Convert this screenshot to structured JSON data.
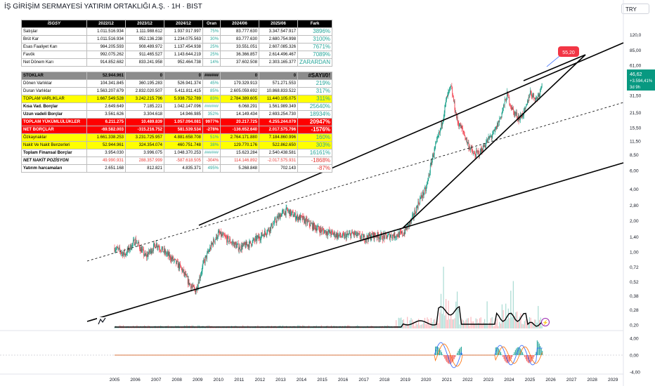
{
  "title": "İŞ GİRİŞİM SERMAYESİ YATIRIM ORTAKLIĞI A.Ş. · 1H · BIST",
  "currency": "TRY",
  "price_tag": {
    "value": "46,62",
    "change": "+3.594,41%",
    "countdown": "3d 9h"
  },
  "target_tag": "55,20",
  "table": {
    "header": [
      "İSGSY",
      "2022/12",
      "2023/12",
      "2024/12",
      "Oran",
      "2024/06",
      "2025/06",
      "Fark"
    ],
    "rows_top": [
      {
        "label": "Satışlar",
        "v": [
          "1.011.516.934",
          "1.111.988.612",
          "1.937.917.997",
          "75%",
          "83.777.630",
          "3.347.547.917",
          "3896%"
        ]
      },
      {
        "label": "Brüt Kar",
        "v": [
          "1.011.516.934",
          "952.136.238",
          "1.234.075.563",
          "30%",
          "83.777.630",
          "2.680.754.998",
          "3100%"
        ]
      },
      {
        "label": "Esas Faaliyet Karı",
        "v": [
          "984.205.593",
          "908.489.972",
          "1.137.454.938",
          "25%",
          "33.551.051",
          "2.607.085.326",
          "7671%"
        ]
      },
      {
        "label": "Favök",
        "v": [
          "992.075.262",
          "911.465.527",
          "1.143.644.219",
          "25%",
          "36.366.857",
          "2.614.496.467",
          "7089%"
        ]
      },
      {
        "label": "Net Dönem Karı",
        "v": [
          "914.852.682",
          "833.241.958",
          "952.464.738",
          "14%",
          "37.602.508",
          "2.303.165.377",
          "ZARARDAN"
        ]
      }
    ],
    "rows_bottom": [
      {
        "label": "STOKLAR",
        "v": [
          "52.944.961",
          "0",
          "0",
          "######",
          "0",
          "0",
          "#SAYI/0!"
        ],
        "cls": "stok"
      },
      {
        "label": "Dönen Varlıklar",
        "v": [
          "104.341.845",
          "360.195.283",
          "526.941.374",
          "45%",
          "179.329.913",
          "571.271.553",
          "219%"
        ],
        "cls": ""
      },
      {
        "label": "Duran Varlıklar",
        "v": [
          "1.563.207.679",
          "2.832.020.507",
          "5.411.811.415",
          "85%",
          "2.605.059.692",
          "10.868.833.522",
          "317%"
        ],
        "cls": ""
      },
      {
        "label": "TOPLAM VARLIKLAR",
        "v": [
          "1.667.549.528",
          "3.242.215.796",
          "5.938.752.789",
          "83%",
          "2.784.389.605",
          "11.440.105.075",
          "311%"
        ],
        "cls": "yellow"
      },
      {
        "label": "Kısa Vad. Borçlar",
        "v": [
          "2.649.649",
          "7.185.221",
          "1.042.147.096",
          "######",
          "6.068.291",
          "1.561.989.349",
          "25640%"
        ],
        "cls": "bold"
      },
      {
        "label": "Uzun vadeli Borçlar",
        "v": [
          "3.561.626",
          "3.304.618",
          "14.946.985",
          "352%",
          "14.149.434",
          "2.693.254.730",
          "18934%"
        ],
        "cls": "bold"
      },
      {
        "label": "TOPLAM YÜKÜMLÜLÜKLER",
        "v": [
          "6.211.275",
          "10.489.839",
          "1.057.094.081",
          "9977%",
          "20.217.725",
          "4.255.244.079",
          "20947%"
        ],
        "cls": "red"
      },
      {
        "label": "NET BORÇLAR",
        "v": [
          "-69.582.003",
          "-315.216.752",
          "581.539.534",
          "-278%",
          "-136.652.640",
          "2.017.575.796",
          "-1576%"
        ],
        "cls": "red"
      },
      {
        "label": "Özkaynaklar",
        "v": [
          "1.661.338.253",
          "3.231.725.957",
          "4.881.658.708",
          "51%",
          "2.764.171.880",
          "7.184.860.996",
          "160%"
        ],
        "cls": "yellow"
      },
      {
        "label": "Nakit Ve Nakit Benzerleri",
        "v": [
          "52.944.961",
          "324.354.074",
          "460.751.748",
          "38%",
          "129.770.176",
          "522.862.650",
          "303%"
        ],
        "cls": "yellow"
      },
      {
        "label": "Toplam Finansal Borçlar",
        "v": [
          "3.954.030",
          "3.996.075",
          "1.048.370.253",
          "######",
          "15.623.284",
          "2.540.438.581",
          "16161%"
        ],
        "cls": "bold"
      },
      {
        "label": "NET NAKİT POZİSYON",
        "v": [
          "49.990.931",
          "288.357.999",
          "-587.618.505",
          "-304%",
          "114.146.892",
          "-2.017.575.931",
          "-1868%"
        ],
        "cls": "italic",
        "neg": true
      },
      {
        "label": "Yatırım harcamaları",
        "v": [
          "2.651.168",
          "812.821",
          "4.835.371",
          "495%",
          "5.268.848",
          "702.143",
          "-87%"
        ],
        "cls": "bold",
        "lastneg": true
      }
    ]
  },
  "chart_data": {
    "type": "line",
    "title": "İŞ GİRİŞİM SERMAYESİ YATIRIM ORTAKLIĞI A.Ş. · 1H · BIST",
    "scale": "log",
    "x_ticks": [
      "2005",
      "2006",
      "2007",
      "2008",
      "2009",
      "2010",
      "2011",
      "2012",
      "2013",
      "2014",
      "2015",
      "2016",
      "2017",
      "2018",
      "2019",
      "2020",
      "2021",
      "2022",
      "2023",
      "2024",
      "2025",
      "2026",
      "2027",
      "2028",
      "2029"
    ],
    "y_ticks": [
      "120,0",
      "85,00",
      "61,00",
      "31,50",
      "21,50",
      "15,50",
      "11,50",
      "8,50",
      "6,00",
      "4,00",
      "2,80",
      "2,00",
      "1,40",
      "1,00",
      "0,72",
      "0,52",
      "0,38",
      "0,28",
      "0,20"
    ],
    "ylim": [
      0.18,
      150
    ],
    "last_price": 46.62,
    "series": [
      {
        "x": [
          2005.0,
          2005.5,
          2006.0,
          2006.5,
          2007.0,
          2007.4,
          2007.8,
          2008.2,
          2008.6,
          2008.9,
          2009.3,
          2009.7,
          2010.0,
          2010.5,
          2011.0,
          2011.5,
          2012.0,
          2012.5,
          2013.0,
          2013.3,
          2013.7,
          2014.0,
          2014.5,
          2015.0,
          2015.5,
          2016.0,
          2016.5,
          2017.0,
          2017.5,
          2018.0,
          2018.5,
          2018.9,
          2019.3,
          2019.7,
          2020.0,
          2020.3,
          2020.7,
          2021.0,
          2021.2,
          2021.5,
          2021.8,
          2022.0,
          2022.3,
          2022.6,
          2023.0,
          2023.3,
          2023.6,
          2023.9,
          2024.2,
          2024.5,
          2024.8,
          2025.0,
          2025.3,
          2025.5,
          2025.6
        ],
        "y": [
          1.1,
          0.95,
          1.3,
          0.9,
          1.2,
          1.0,
          0.85,
          0.7,
          0.5,
          0.42,
          0.8,
          1.2,
          1.5,
          1.3,
          1.1,
          1.2,
          1.4,
          1.7,
          2.3,
          2.5,
          2.2,
          2.1,
          1.8,
          1.6,
          1.5,
          1.4,
          1.5,
          1.35,
          1.45,
          1.4,
          1.45,
          1.5,
          2.0,
          3.2,
          4.0,
          8.0,
          15.0,
          30.0,
          38.0,
          18.0,
          14.0,
          11.0,
          8.5,
          9.0,
          12.0,
          14.0,
          20.0,
          32.0,
          22.0,
          19.0,
          23.0,
          34.0,
          29.0,
          35.0,
          46.62
        ]
      }
    ]
  }
}
